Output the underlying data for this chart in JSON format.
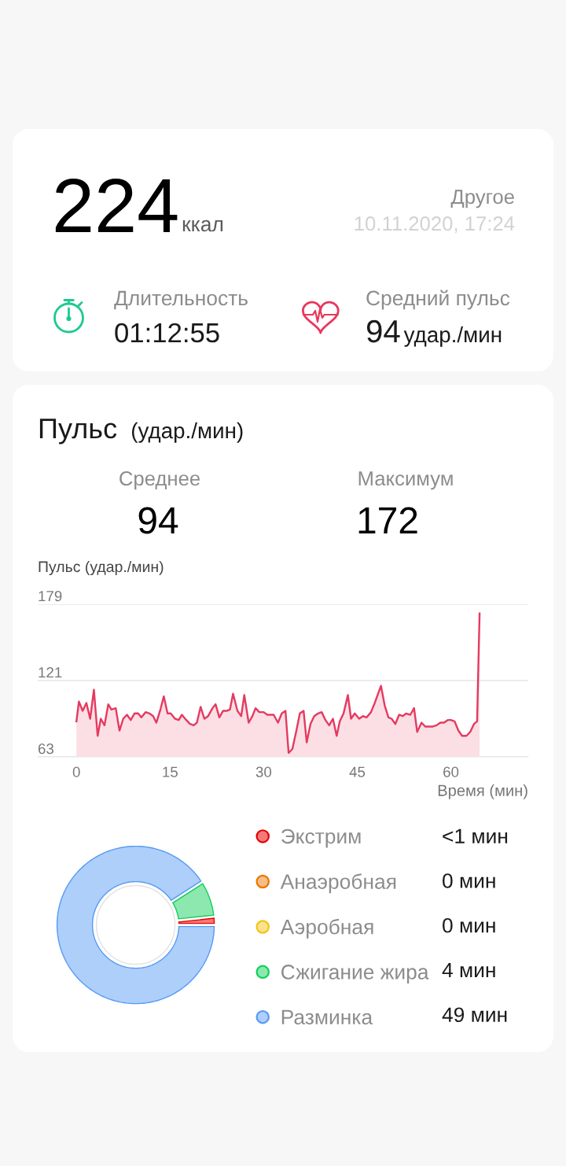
{
  "chart_data": [
    {
      "type": "other",
      "annotations": [
        "224",
        "ккал",
        "Другое",
        "10.11.2020, 17:24",
        "Длительность",
        "01:12:55",
        "Средний пульс",
        "94",
        "удар./мин"
      ]
    },
    {
      "type": "area",
      "title": "Пульс",
      "subtitle": "(удар./мин)",
      "annotations": [
        "Среднее",
        "94",
        "Максимум",
        "172"
      ],
      "ylabel": "Пульс (удар./мин)",
      "xlabel": "Время (мин)",
      "x": [
        0,
        0.4,
        1.0,
        1.6,
        2.2,
        2.8,
        3.4,
        3.9,
        4.5,
        5.1,
        5.6,
        6.3,
        6.9,
        7.5,
        8.1,
        8.7,
        9.3,
        9.9,
        10.4,
        11.1,
        11.7,
        12.3,
        12.8,
        13.4,
        14.0,
        14.6,
        15.1,
        15.8,
        16.4,
        16.9,
        17.6,
        18.2,
        18.8,
        19.3,
        19.9,
        20.5,
        21.1,
        21.8,
        22.3,
        22.9,
        23.5,
        24.1,
        24.6,
        25.1,
        25.8,
        26.4,
        26.9,
        27.6,
        28.2,
        28.7,
        29.3,
        30.0,
        30.6,
        31.6,
        32.3,
        32.9,
        33.5,
        34.0,
        34.6,
        35.2,
        35.8,
        36.4,
        36.9,
        37.5,
        38.1,
        38.7,
        39.3,
        39.9,
        40.5,
        41.1,
        41.7,
        42.2,
        42.8,
        43.5,
        44.0,
        44.6,
        45.3,
        45.9,
        46.5,
        47.2,
        47.8,
        48.8,
        49.4,
        50.0,
        50.5,
        51.1,
        51.7,
        52.3,
        52.8,
        53.5,
        54.1,
        54.6,
        55.3,
        55.9,
        57.0,
        57.7,
        58.3,
        58.9,
        59.5,
        60.0,
        60.6,
        61.2,
        61.8,
        62.5,
        63.1,
        63.7,
        64.2,
        64.6
      ],
      "series": [
        {
          "color": "#e53a5f",
          "values": [
            90,
            105,
            98,
            104,
            92,
            114,
            79,
            92,
            87,
            103,
            99,
            100,
            83,
            92,
            95,
            91,
            96,
            96,
            93,
            97,
            96,
            94,
            89,
            98,
            109,
            96,
            96,
            92,
            91,
            95,
            91,
            88,
            87,
            89,
            101,
            92,
            94,
            100,
            103,
            93,
            98,
            98,
            99,
            111,
            98,
            94,
            110,
            89,
            94,
            100,
            97,
            97,
            95,
            95,
            89,
            96,
            98,
            66,
            69,
            82,
            96,
            98,
            74,
            88,
            94,
            96,
            97,
            91,
            87,
            92,
            79,
            90,
            96,
            110,
            92,
            96,
            92,
            94,
            93,
            97,
            104,
            117,
            102,
            93,
            92,
            88,
            95,
            94,
            96,
            95,
            100,
            82,
            89,
            86,
            86,
            87,
            89,
            89,
            91,
            91,
            90,
            83,
            79,
            79,
            82,
            88,
            90,
            172
          ]
        }
      ],
      "xlim": [
        -6.2,
        72.4
      ],
      "ylim": [
        63,
        179
      ],
      "xticks": [
        0,
        15,
        30,
        45,
        60
      ],
      "yticks": [
        63,
        121,
        179
      ],
      "grid": "y"
    },
    {
      "type": "donut",
      "categories": [
        "Экстрим",
        "Анаэробная",
        "Аэробная",
        "Сжигание жира",
        "Разминка"
      ],
      "values": [
        0.9,
        0,
        0,
        4,
        49
      ],
      "colors": [
        "#f47a7a",
        "#f6bd85",
        "#fae38e",
        "#8de8b0",
        "#aecffa"
      ],
      "value_labels": [
        "<1 мин",
        "0 мин",
        "0 мин",
        "4 мин",
        "49 мин"
      ],
      "legend": "right"
    }
  ]
}
